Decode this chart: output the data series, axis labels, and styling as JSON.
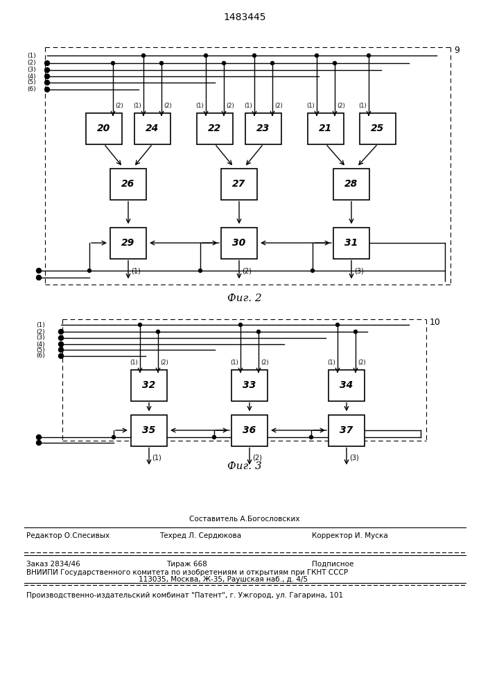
{
  "title": "1483445",
  "fig2_label": "Фиг. 2",
  "fig3_label": "Фиг. 3",
  "bg_color": "#ffffff",
  "line_color": "#000000"
}
